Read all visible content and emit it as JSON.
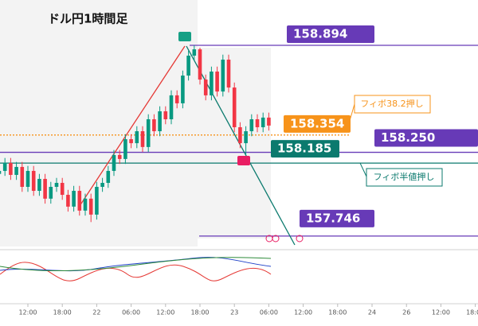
{
  "chart_data": {
    "type": "candlestick",
    "title": "ドル円1時間足",
    "x": [
      7,
      8,
      9,
      10,
      11,
      12,
      13,
      14,
      15,
      16,
      17,
      18,
      19,
      20,
      21,
      22,
      23,
      24,
      25,
      26,
      27,
      28,
      29,
      30,
      31,
      32,
      33,
      34,
      35,
      36,
      37,
      38,
      39,
      40,
      41,
      42,
      43,
      44,
      45,
      46,
      47,
      48,
      49,
      50,
      51,
      52,
      53,
      54
    ],
    "open": [
      158.12,
      158.138,
      158.186,
      158.114,
      158.162,
      158.042,
      158.138,
      158.018,
      158.09,
      157.971,
      158.042,
      158.066,
      157.994,
      157.923,
      158.018,
      157.899,
      157.971,
      157.875,
      158.042,
      158.066,
      158.138,
      158.234,
      158.21,
      158.329,
      158.305,
      158.377,
      158.282,
      158.449,
      158.377,
      158.497,
      158.449,
      158.593,
      158.545,
      158.712,
      158.832,
      158.87,
      158.688,
      158.593,
      158.736,
      158.616,
      158.808,
      158.64,
      158.401,
      158.305,
      158.377,
      158.449,
      158.401,
      158.459
    ],
    "high": [
      158.168,
      158.216,
      158.216,
      158.192,
      158.192,
      158.168,
      158.168,
      158.12,
      158.12,
      158.072,
      158.096,
      158.096,
      158.024,
      158.048,
      158.048,
      158.001,
      158.001,
      158.072,
      158.096,
      158.168,
      158.264,
      158.264,
      158.359,
      158.359,
      158.407,
      158.407,
      158.479,
      158.479,
      158.527,
      158.527,
      158.623,
      158.623,
      158.742,
      158.862,
      158.894,
      158.88,
      158.718,
      158.766,
      158.766,
      158.838,
      158.838,
      158.67,
      158.431,
      158.407,
      158.479,
      158.479,
      158.489,
      158.489
    ],
    "low": [
      158.09,
      158.108,
      158.084,
      158.084,
      158.012,
      158.012,
      157.988,
      157.988,
      157.941,
      157.941,
      158.012,
      157.964,
      157.893,
      157.893,
      157.869,
      157.869,
      157.83,
      157.845,
      158.012,
      158.036,
      158.108,
      158.18,
      158.18,
      158.275,
      158.275,
      158.252,
      158.252,
      158.347,
      158.347,
      158.419,
      158.419,
      158.515,
      158.515,
      158.682,
      158.802,
      158.658,
      158.563,
      158.563,
      158.586,
      158.586,
      158.61,
      158.371,
      158.275,
      158.185,
      158.347,
      158.371,
      158.371,
      158.381
    ],
    "close": [
      158.138,
      158.186,
      158.114,
      158.162,
      158.042,
      158.138,
      158.018,
      158.09,
      157.971,
      158.042,
      158.066,
      157.994,
      157.923,
      158.018,
      157.899,
      157.971,
      157.875,
      158.042,
      158.066,
      158.138,
      158.234,
      158.21,
      158.329,
      158.305,
      158.377,
      158.282,
      158.449,
      158.377,
      158.497,
      158.449,
      158.593,
      158.545,
      158.712,
      158.832,
      158.87,
      158.688,
      158.593,
      158.736,
      158.616,
      158.808,
      158.64,
      158.401,
      158.305,
      158.377,
      158.449,
      158.401,
      158.459,
      158.411
    ],
    "up_color": "#089981",
    "down_color": "#f23645",
    "xlim": [
      7.14,
      90.47
    ],
    "ylim": [
      157.683,
      159.167
    ],
    "xticks": [
      {
        "value": 12,
        "label": "12:00"
      },
      {
        "value": 18,
        "label": "18:00"
      },
      {
        "value": 24,
        "label": "22"
      },
      {
        "value": 30,
        "label": "06:00"
      },
      {
        "value": 36,
        "label": "12:00"
      },
      {
        "value": 42,
        "label": "18:00"
      },
      {
        "value": 48,
        "label": "23"
      },
      {
        "value": 54,
        "label": "06:00"
      },
      {
        "value": 60,
        "label": "12:00"
      },
      {
        "value": 66,
        "label": "18:00"
      },
      {
        "value": 72,
        "label": "24"
      },
      {
        "value": 78,
        "label": "26"
      },
      {
        "value": 84,
        "label": "12:00"
      },
      {
        "value": 90,
        "label": "18:00"
      }
    ],
    "levels": [
      {
        "value": 158.894,
        "label": "158.894",
        "color": "#673ab7"
      },
      {
        "value": 158.354,
        "label": "158.354",
        "color": "#f7931a"
      },
      {
        "value": 158.25,
        "label": "158.250",
        "color": "#673ab7"
      },
      {
        "value": 158.185,
        "label": "158.185",
        "color": "#0b7a6e"
      },
      {
        "value": 157.746,
        "label": "157.746",
        "color": "#673ab7"
      }
    ],
    "annotations": [
      "フィボ38.2押し",
      "フィボ半値押し"
    ]
  }
}
